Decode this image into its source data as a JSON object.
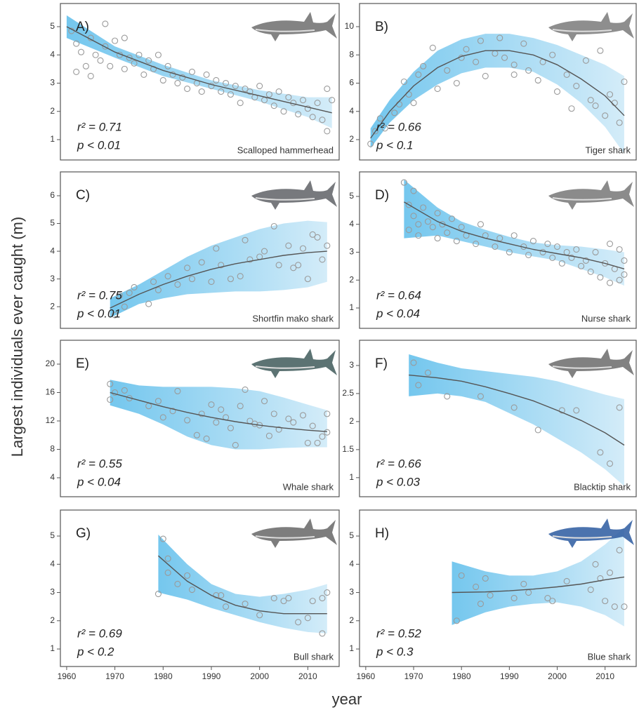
{
  "ylabel": "Largest individuals ever caught (m)",
  "xlabel": "year",
  "chart_data": [
    {
      "type": "scatter",
      "panel": "A)",
      "species": "Scalloped hammerhead",
      "r2": "r² = 0.71",
      "p": "p < 0.01",
      "icon_color": "#6d6d6d",
      "xlim": [
        1958.7,
        2016.5
      ],
      "ylim": [
        0.28,
        5.82
      ],
      "yticks": [
        1,
        2,
        3,
        4,
        5
      ],
      "x": [
        1961,
        1962,
        1962,
        1963,
        1964,
        1965,
        1965,
        1966,
        1967,
        1968,
        1968,
        1969,
        1970,
        1971,
        1972,
        1972,
        1973,
        1974,
        1975,
        1976,
        1977,
        1978,
        1979,
        1980,
        1981,
        1982,
        1983,
        1984,
        1985,
        1986,
        1987,
        1988,
        1989,
        1990,
        1991,
        1992,
        1993,
        1994,
        1995,
        1996,
        1997,
        1998,
        1999,
        2000,
        2001,
        2002,
        2003,
        2004,
        2005,
        2006,
        2007,
        2008,
        2009,
        2010,
        2011,
        2012,
        2013,
        2014,
        2014,
        2015
      ],
      "values": [
        4.85,
        3.4,
        4.4,
        4.1,
        3.6,
        3.25,
        4.6,
        4.0,
        3.8,
        5.1,
        4.3,
        3.6,
        4.5,
        4.0,
        4.6,
        3.5,
        3.9,
        3.7,
        4.0,
        3.3,
        3.8,
        3.5,
        4.0,
        3.1,
        3.6,
        3.3,
        3.0,
        3.2,
        2.8,
        3.4,
        3.0,
        2.7,
        3.3,
        2.9,
        3.1,
        2.7,
        3.0,
        2.6,
        2.9,
        2.3,
        2.8,
        2.7,
        2.5,
        2.9,
        2.4,
        2.6,
        2.2,
        2.7,
        2.0,
        2.5,
        2.3,
        1.9,
        2.4,
        2.1,
        1.8,
        2.3,
        1.7,
        2.8,
        1.3,
        2.4
      ],
      "fit_x": [
        1960,
        1970,
        1980,
        1990,
        2000,
        2010,
        2015
      ],
      "fit": [
        5.0,
        4.1,
        3.45,
        2.95,
        2.55,
        2.15,
        1.95
      ],
      "band_upper": [
        5.4,
        4.3,
        3.65,
        3.1,
        2.75,
        2.5,
        2.5
      ],
      "band_lower": [
        4.6,
        3.9,
        3.25,
        2.8,
        2.35,
        1.8,
        1.4
      ]
    },
    {
      "type": "scatter",
      "panel": "B)",
      "species": "Tiger shark",
      "r2": "r² = 0.66",
      "p": "p < 0.1",
      "icon_color": "#7a7a7a",
      "xlim": [
        1958.7,
        2016.5
      ],
      "ylim": [
        0.56,
        11.64
      ],
      "yticks": [
        2,
        4,
        6,
        8,
        10
      ],
      "x": [
        1961,
        1962,
        1963,
        1964,
        1966,
        1967,
        1968,
        1969,
        1970,
        1971,
        1972,
        1974,
        1975,
        1977,
        1979,
        1980,
        1981,
        1983,
        1984,
        1985,
        1987,
        1988,
        1989,
        1991,
        1991,
        1993,
        1994,
        1996,
        1997,
        1999,
        2000,
        2002,
        2003,
        2004,
        2006,
        2007,
        2008,
        2009,
        2010,
        2011,
        2012,
        2013,
        2014
      ],
      "values": [
        1.7,
        2.6,
        3.5,
        2.8,
        3.9,
        4.5,
        6.1,
        5.2,
        4.6,
        6.6,
        7.2,
        8.5,
        5.6,
        6.9,
        6.0,
        7.8,
        8.4,
        7.5,
        9.0,
        6.5,
        8.1,
        9.2,
        7.8,
        7.3,
        6.6,
        8.8,
        6.9,
        6.2,
        7.5,
        8.0,
        5.4,
        6.6,
        4.2,
        5.8,
        7.6,
        4.8,
        4.4,
        8.3,
        3.7,
        5.2,
        4.6,
        3.2,
        6.1
      ],
      "fit_x": [
        1961,
        1965,
        1970,
        1975,
        1980,
        1985,
        1990,
        1995,
        2000,
        2005,
        2010,
        2014
      ],
      "fit": [
        2.1,
        4.0,
        5.8,
        7.1,
        7.9,
        8.3,
        8.3,
        8.0,
        7.3,
        6.3,
        5.1,
        3.7
      ],
      "band_upper": [
        2.8,
        4.8,
        6.8,
        8.3,
        9.1,
        9.5,
        9.5,
        9.2,
        8.7,
        8.0,
        7.3,
        6.5
      ],
      "band_lower": [
        1.4,
        3.2,
        4.8,
        5.9,
        6.7,
        7.1,
        7.1,
        6.8,
        5.9,
        4.6,
        2.9,
        1.0
      ]
    },
    {
      "type": "scatter",
      "panel": "C)",
      "species": "Shortfin mako shark",
      "r2": "r² = 0.75",
      "p": "p < 0.01",
      "icon_color": "#5f6266",
      "xlim": [
        1958.7,
        2016.5
      ],
      "ylim": [
        1.22,
        6.86
      ],
      "yticks": [
        2,
        3,
        4,
        5,
        6
      ],
      "x": [
        1970,
        1971,
        1972,
        1973,
        1974,
        1977,
        1978,
        1979,
        1981,
        1983,
        1985,
        1986,
        1988,
        1990,
        1991,
        1992,
        1994,
        1996,
        1997,
        1998,
        2000,
        2001,
        2003,
        2004,
        2006,
        2007,
        2008,
        2009,
        2010,
        2011,
        2012,
        2013,
        2014
      ],
      "values": [
        1.7,
        2.4,
        2.0,
        2.5,
        2.7,
        2.1,
        2.9,
        2.6,
        3.1,
        2.8,
        3.4,
        3.0,
        3.6,
        2.9,
        4.1,
        3.5,
        3.0,
        3.1,
        4.4,
        3.7,
        3.8,
        4.0,
        4.9,
        3.5,
        4.2,
        3.4,
        3.5,
        4.1,
        3.0,
        4.6,
        4.5,
        3.7,
        4.2
      ],
      "fit_x": [
        1969,
        1975,
        1980,
        1985,
        1990,
        1995,
        2000,
        2005,
        2010,
        2014
      ],
      "fit": [
        1.95,
        2.45,
        2.8,
        3.1,
        3.35,
        3.55,
        3.7,
        3.85,
        3.95,
        4.0
      ],
      "band_upper": [
        2.3,
        2.8,
        3.3,
        3.8,
        4.2,
        4.5,
        4.8,
        5.0,
        5.1,
        5.05
      ],
      "band_lower": [
        1.6,
        2.1,
        2.3,
        2.45,
        2.5,
        2.55,
        2.55,
        2.6,
        2.7,
        2.9
      ]
    },
    {
      "type": "scatter",
      "panel": "D)",
      "species": "Nurse shark",
      "r2": "r² = 0.64",
      "p": "p < 0.04",
      "icon_color": "#777777",
      "xlim": [
        1958.7,
        2016.5
      ],
      "ylim": [
        0.27,
        5.88
      ],
      "yticks": [
        1,
        2,
        3,
        4,
        5
      ],
      "x": [
        1968,
        1969,
        1969,
        1970,
        1970,
        1971,
        1971,
        1972,
        1973,
        1974,
        1975,
        1975,
        1976,
        1977,
        1978,
        1979,
        1980,
        1981,
        1983,
        1984,
        1985,
        1987,
        1988,
        1990,
        1991,
        1993,
        1994,
        1995,
        1997,
        1998,
        1999,
        2000,
        2001,
        2002,
        2003,
        2004,
        2005,
        2006,
        2007,
        2008,
        2009,
        2010,
        2011,
        2011,
        2012,
        2013,
        2013,
        2014,
        2014
      ],
      "values": [
        5.5,
        4.7,
        3.8,
        5.2,
        4.3,
        4.0,
        3.6,
        4.6,
        4.1,
        3.9,
        4.4,
        3.5,
        4.0,
        3.7,
        4.2,
        3.4,
        3.9,
        3.6,
        3.3,
        4.0,
        3.6,
        3.2,
        3.5,
        3.0,
        3.6,
        3.2,
        2.9,
        3.4,
        3.0,
        3.3,
        2.8,
        3.2,
        2.6,
        3.0,
        2.8,
        3.1,
        2.5,
        2.7,
        2.3,
        3.0,
        2.1,
        2.6,
        1.9,
        3.3,
        2.4,
        2.0,
        3.1,
        2.7,
        2.2
      ],
      "fit_x": [
        1968,
        1975,
        1980,
        1985,
        1990,
        1995,
        2000,
        2005,
        2010,
        2014
      ],
      "fit": [
        4.8,
        4.1,
        3.75,
        3.5,
        3.3,
        3.1,
        2.95,
        2.8,
        2.6,
        2.4
      ],
      "band_upper": [
        5.6,
        4.6,
        4.1,
        3.8,
        3.55,
        3.35,
        3.25,
        3.2,
        3.1,
        3.0
      ],
      "band_lower": [
        3.5,
        3.6,
        3.4,
        3.2,
        3.0,
        2.85,
        2.7,
        2.4,
        2.1,
        1.8
      ]
    },
    {
      "type": "scatter",
      "panel": "E)",
      "species": "Whale shark",
      "r2": "r² = 0.55",
      "p": "p < 0.04",
      "icon_color": "#3f5a5a",
      "xlim": [
        1958.7,
        2016.5
      ],
      "ylim": [
        1.33,
        23.36
      ],
      "yticks": [
        4,
        8,
        12,
        16,
        20
      ],
      "x": [
        1969,
        1969,
        1970,
        1972,
        1973,
        1977,
        1979,
        1980,
        1982,
        1983,
        1985,
        1987,
        1988,
        1989,
        1990,
        1991,
        1992,
        1993,
        1994,
        1995,
        1996,
        1997,
        1998,
        1999,
        2000,
        2001,
        2002,
        2003,
        2004,
        2006,
        2007,
        2009,
        2010,
        2011,
        2012,
        2013,
        2014,
        2014
      ],
      "values": [
        17.2,
        15.0,
        16.0,
        16.3,
        15.2,
        14.1,
        14.8,
        12.5,
        13.4,
        16.2,
        12.1,
        10.0,
        13.0,
        9.5,
        14.3,
        11.8,
        13.6,
        12.5,
        11.0,
        8.6,
        14.1,
        16.4,
        12.0,
        11.6,
        11.4,
        14.8,
        9.9,
        13.0,
        10.8,
        12.3,
        11.8,
        12.8,
        8.9,
        11.3,
        8.9,
        9.8,
        13.0,
        10.4
      ],
      "fit_x": [
        1969,
        1975,
        1980,
        1985,
        1990,
        1995,
        2000,
        2005,
        2010,
        2014
      ],
      "fit": [
        16.0,
        14.9,
        14.0,
        13.2,
        12.5,
        11.9,
        11.4,
        11.0,
        10.7,
        10.5
      ],
      "band_upper": [
        17.8,
        17.0,
        16.8,
        16.8,
        16.8,
        16.6,
        16.2,
        15.3,
        14.3,
        13.5
      ],
      "band_lower": [
        14.2,
        13.0,
        11.5,
        9.8,
        8.6,
        8.0,
        8.0,
        8.2,
        8.3,
        8.3
      ]
    },
    {
      "type": "scatter",
      "panel": "F)",
      "species": "Blacktip shark",
      "r2": "r² = 0.66",
      "p": "p < 0.03",
      "icon_color": "#6b6b6b",
      "xlim": [
        1958.7,
        2016.5
      ],
      "ylim": [
        0.66,
        3.45
      ],
      "yticks": [
        1,
        1.5,
        2,
        2.5,
        3
      ],
      "x": [
        1970,
        1971,
        1973,
        1977,
        1984,
        1991,
        1996,
        2001,
        2004,
        2009,
        2011,
        2013
      ],
      "values": [
        3.05,
        2.65,
        2.87,
        2.45,
        2.45,
        2.25,
        1.85,
        2.2,
        2.2,
        1.45,
        1.25,
        2.25
      ],
      "fit_x": [
        1969,
        1975,
        1980,
        1985,
        1990,
        1995,
        2000,
        2005,
        2010,
        2014
      ],
      "fit": [
        2.83,
        2.78,
        2.72,
        2.62,
        2.5,
        2.37,
        2.2,
        2.02,
        1.8,
        1.58
      ],
      "band_upper": [
        3.2,
        3.05,
        2.95,
        2.9,
        2.85,
        2.8,
        2.72,
        2.6,
        2.48,
        2.4
      ],
      "band_lower": [
        2.45,
        2.5,
        2.45,
        2.35,
        2.15,
        1.95,
        1.7,
        1.45,
        1.15,
        0.85
      ]
    },
    {
      "type": "scatter",
      "panel": "G)",
      "species": "Bull shark",
      "r2": "r² = 0.69",
      "p": "p < 0.2",
      "icon_color": "#666666",
      "xlim": [
        1958.7,
        2016.5
      ],
      "ylim": [
        0.38,
        5.92
      ],
      "yticks": [
        1,
        2,
        3,
        4,
        5
      ],
      "xticks": [
        1960,
        1970,
        1980,
        1990,
        2000,
        2010
      ],
      "x": [
        1979,
        1980,
        1981,
        1981,
        1983,
        1985,
        1986,
        1991,
        1992,
        1993,
        1997,
        2000,
        2003,
        2005,
        2006,
        2008,
        2010,
        2011,
        2013,
        2013,
        2014
      ],
      "values": [
        2.95,
        4.9,
        4.2,
        3.7,
        3.3,
        3.6,
        3.1,
        2.9,
        2.9,
        2.5,
        2.6,
        2.2,
        2.8,
        2.7,
        2.8,
        1.95,
        2.1,
        2.7,
        2.8,
        1.55,
        3.0
      ],
      "fit_x": [
        1979,
        1985,
        1990,
        1995,
        2000,
        2005,
        2010,
        2014
      ],
      "fit": [
        4.3,
        3.4,
        2.9,
        2.55,
        2.35,
        2.25,
        2.25,
        2.25
      ],
      "band_upper": [
        5.05,
        4.0,
        3.3,
        2.95,
        2.85,
        2.95,
        3.1,
        3.3
      ],
      "band_lower": [
        3.0,
        2.75,
        2.45,
        2.2,
        1.95,
        1.75,
        1.6,
        1.55
      ]
    },
    {
      "type": "scatter",
      "panel": "H)",
      "species": "Blue shark",
      "r2": "r² = 0.52",
      "p": "p < 0.3",
      "icon_color": "#2c5aa0",
      "xlim": [
        1958.7,
        2016.5
      ],
      "ylim": [
        0.38,
        5.92
      ],
      "yticks": [
        1,
        2,
        3,
        4,
        5
      ],
      "xticks": [
        1960,
        1970,
        1980,
        1990,
        2000,
        2010
      ],
      "x": [
        1979,
        1980,
        1983,
        1984,
        1985,
        1986,
        1991,
        1993,
        1994,
        1998,
        1999,
        2002,
        2007,
        2008,
        2009,
        2010,
        2011,
        2012,
        2013,
        2014
      ],
      "values": [
        2.0,
        3.6,
        3.2,
        2.6,
        3.5,
        2.9,
        2.8,
        3.3,
        3.0,
        2.8,
        2.7,
        3.4,
        3.1,
        4.0,
        3.5,
        2.7,
        3.7,
        2.5,
        4.5,
        2.5
      ],
      "fit_x": [
        1978,
        1985,
        1990,
        1995,
        2000,
        2005,
        2010,
        2014
      ],
      "fit": [
        3.0,
        3.02,
        3.06,
        3.12,
        3.2,
        3.3,
        3.45,
        3.55
      ],
      "band_upper": [
        4.1,
        3.75,
        3.6,
        3.6,
        3.75,
        4.1,
        4.7,
        5.3
      ],
      "band_lower": [
        1.85,
        2.3,
        2.5,
        2.6,
        2.65,
        2.5,
        2.2,
        1.8
      ]
    }
  ]
}
